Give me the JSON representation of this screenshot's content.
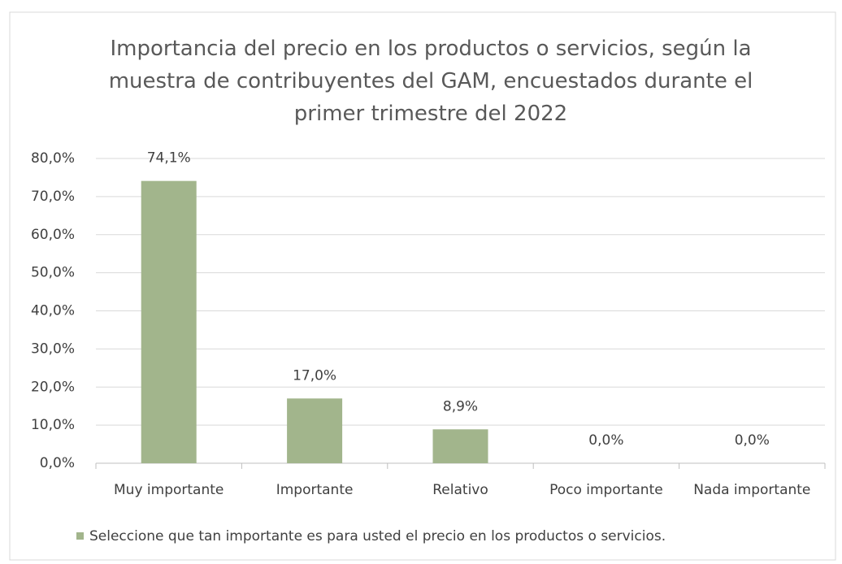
{
  "chart_data": {
    "type": "bar",
    "title": "Importancia del precio en los productos o servicios, según la muestra de contribuyentes del GAM, encuestados durante el primer trimestre del 2022",
    "categories": [
      "Muy importante",
      "Importante",
      "Relativo",
      "Poco importante",
      "Nada importante"
    ],
    "series": [
      {
        "name": "Seleccione que tan importante es para usted el precio en los productos o servicios.",
        "color": "#a2b58c",
        "values": [
          74.1,
          17.0,
          8.9,
          0,
          0
        ],
        "value_labels": [
          "74,1%",
          "17,0%",
          "8,9%",
          "0,0%",
          "0,0%"
        ]
      }
    ],
    "ylim": [
      0,
      80
    ],
    "yticks": [
      {
        "value": 0,
        "label": "0,0%"
      },
      {
        "value": 10,
        "label": "10,0%"
      },
      {
        "value": 20,
        "label": "20,0%"
      },
      {
        "value": 30,
        "label": "30,0%"
      },
      {
        "value": 40,
        "label": "40,0%"
      },
      {
        "value": 50,
        "label": "50,0%"
      },
      {
        "value": 60,
        "label": "60,0%"
      },
      {
        "value": 70,
        "label": "70,0%"
      },
      {
        "value": 80,
        "label": "80,0%"
      }
    ],
    "grid": true,
    "legend": "bottom"
  }
}
